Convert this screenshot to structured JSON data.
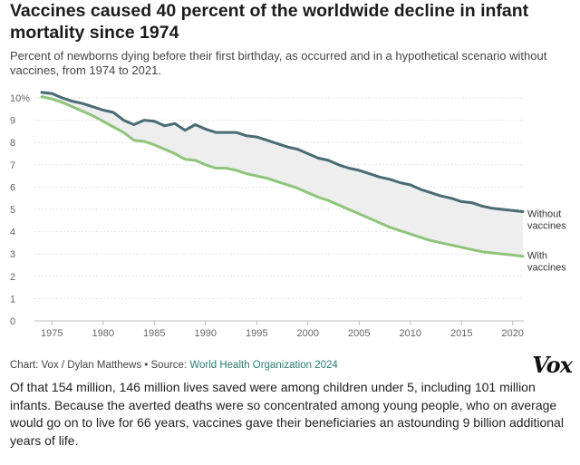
{
  "title": "Vaccines caused 40 percent of the worldwide decline in infant mortality since 1974",
  "subtitle": "Percent of newborns dying before their first birthday, as occurred and in a hypothetical scenario without vaccines, from 1974 to 2021.",
  "source": {
    "prefix": "Chart: Vox / Dylan Matthews • Source: ",
    "link_text": "World Health Organization 2024"
  },
  "logo_text": "Vox",
  "body_text": "Of that 154 million, 146 million lives saved were among children under 5, including 101 million infants. Because the averted deaths were so concentrated among young people, who on average would go on to live for 66 years, vaccines gave their beneficiaries an astounding 9 billion additional years of life.",
  "chart_data": {
    "type": "line",
    "x": [
      1974,
      1975,
      1976,
      1977,
      1978,
      1979,
      1980,
      1981,
      1982,
      1983,
      1984,
      1985,
      1986,
      1987,
      1988,
      1989,
      1990,
      1991,
      1992,
      1993,
      1994,
      1995,
      1996,
      1997,
      1998,
      1999,
      2000,
      2001,
      2002,
      2003,
      2004,
      2005,
      2006,
      2007,
      2008,
      2009,
      2010,
      2011,
      2012,
      2013,
      2014,
      2015,
      2016,
      2017,
      2018,
      2019,
      2020,
      2021
    ],
    "series": [
      {
        "name": "Without vaccines",
        "color": "#4a6b74",
        "values": [
          10.25,
          10.2,
          10.0,
          9.85,
          9.75,
          9.6,
          9.45,
          9.35,
          9.0,
          8.8,
          9.0,
          8.95,
          8.75,
          8.85,
          8.55,
          8.8,
          8.6,
          8.45,
          8.45,
          8.45,
          8.3,
          8.25,
          8.1,
          7.95,
          7.8,
          7.7,
          7.5,
          7.3,
          7.2,
          7.0,
          6.85,
          6.75,
          6.6,
          6.45,
          6.35,
          6.2,
          6.1,
          5.9,
          5.75,
          5.6,
          5.5,
          5.35,
          5.3,
          5.15,
          5.05,
          5.0,
          4.95,
          4.9
        ]
      },
      {
        "name": "With vaccines",
        "color": "#8fc47c",
        "values": [
          10.05,
          9.95,
          9.8,
          9.6,
          9.4,
          9.2,
          8.95,
          8.7,
          8.45,
          8.1,
          8.05,
          7.9,
          7.7,
          7.5,
          7.25,
          7.2,
          7.0,
          6.85,
          6.85,
          6.75,
          6.6,
          6.5,
          6.4,
          6.25,
          6.1,
          5.95,
          5.75,
          5.55,
          5.4,
          5.2,
          5.0,
          4.8,
          4.6,
          4.4,
          4.2,
          4.05,
          3.9,
          3.75,
          3.6,
          3.5,
          3.4,
          3.3,
          3.2,
          3.1,
          3.05,
          3.0,
          2.95,
          2.9
        ]
      }
    ],
    "y_ticks": [
      "0",
      "1",
      "2",
      "3",
      "4",
      "5",
      "6",
      "7",
      "8",
      "9",
      "10%"
    ],
    "y_tick_values": [
      0,
      1,
      2,
      3,
      4,
      5,
      6,
      7,
      8,
      9,
      10
    ],
    "x_ticks": [
      1975,
      1980,
      1985,
      1990,
      1995,
      2000,
      2005,
      2010,
      2015,
      2020
    ],
    "ylim": [
      0,
      10.5
    ],
    "xlim": [
      1974,
      2021
    ],
    "series_labels": {
      "without": [
        "Without",
        "vaccines"
      ],
      "with": [
        "With",
        "vaccines"
      ]
    },
    "fill_between_color": "#eeeeee",
    "grid": true
  }
}
